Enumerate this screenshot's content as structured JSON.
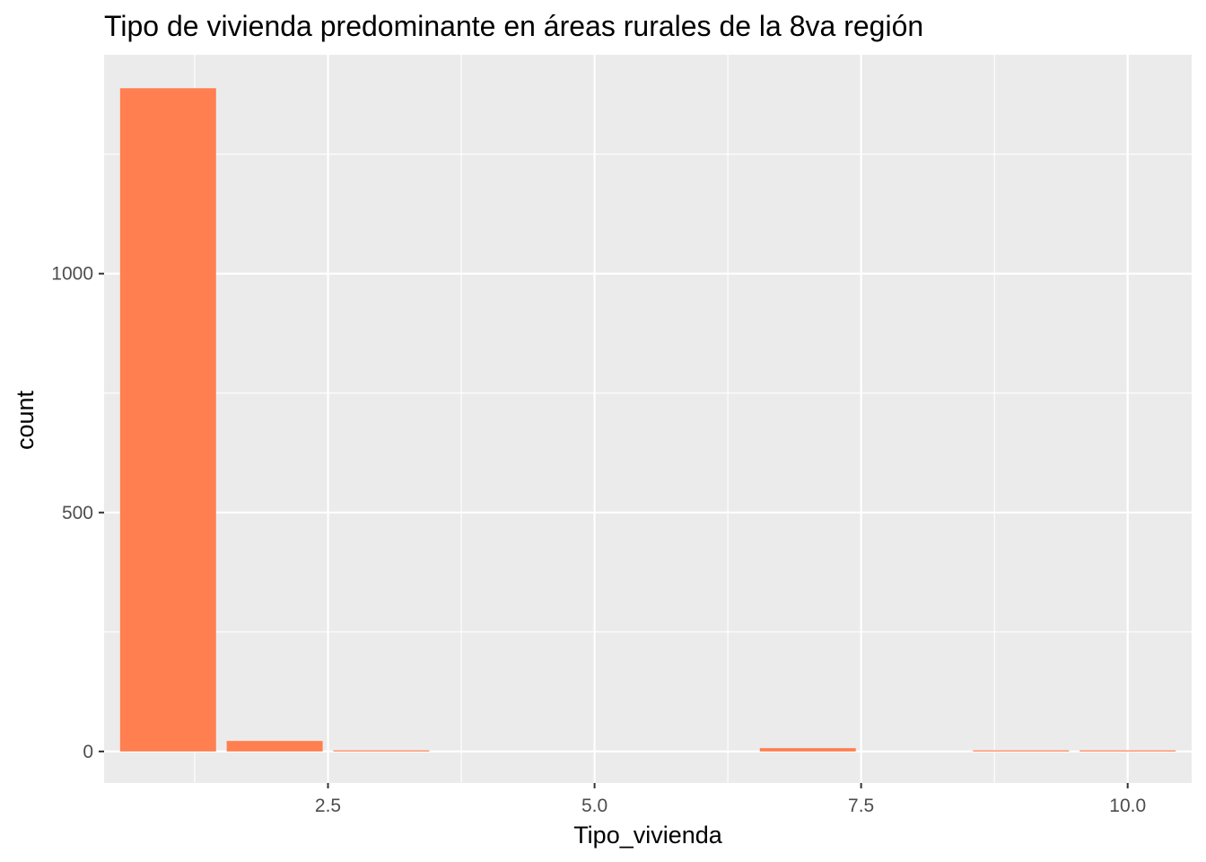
{
  "chart_data": {
    "type": "bar",
    "title": "Tipo de vivienda predominante en áreas rurales de la 8va región",
    "xlabel": "Tipo_vivienda",
    "ylabel": "count",
    "x": [
      1,
      2,
      3,
      7,
      9,
      10
    ],
    "values": [
      1388,
      22,
      2,
      7,
      2,
      2
    ],
    "xlim": [
      0.4,
      10.6
    ],
    "ylim": [
      -66,
      1458
    ],
    "x_ticks": [
      2.5,
      5.0,
      7.5,
      10.0
    ],
    "x_tick_labels": [
      "2.5",
      "5.0",
      "7.5",
      "10.0"
    ],
    "y_ticks": [
      0,
      500,
      1000
    ],
    "y_tick_labels": [
      "0",
      "500",
      "1000"
    ],
    "grid": true,
    "colors": {
      "bar": "#ff7f50",
      "panel": "#ebebeb",
      "grid": "#ffffff",
      "tick": "#333333"
    }
  }
}
